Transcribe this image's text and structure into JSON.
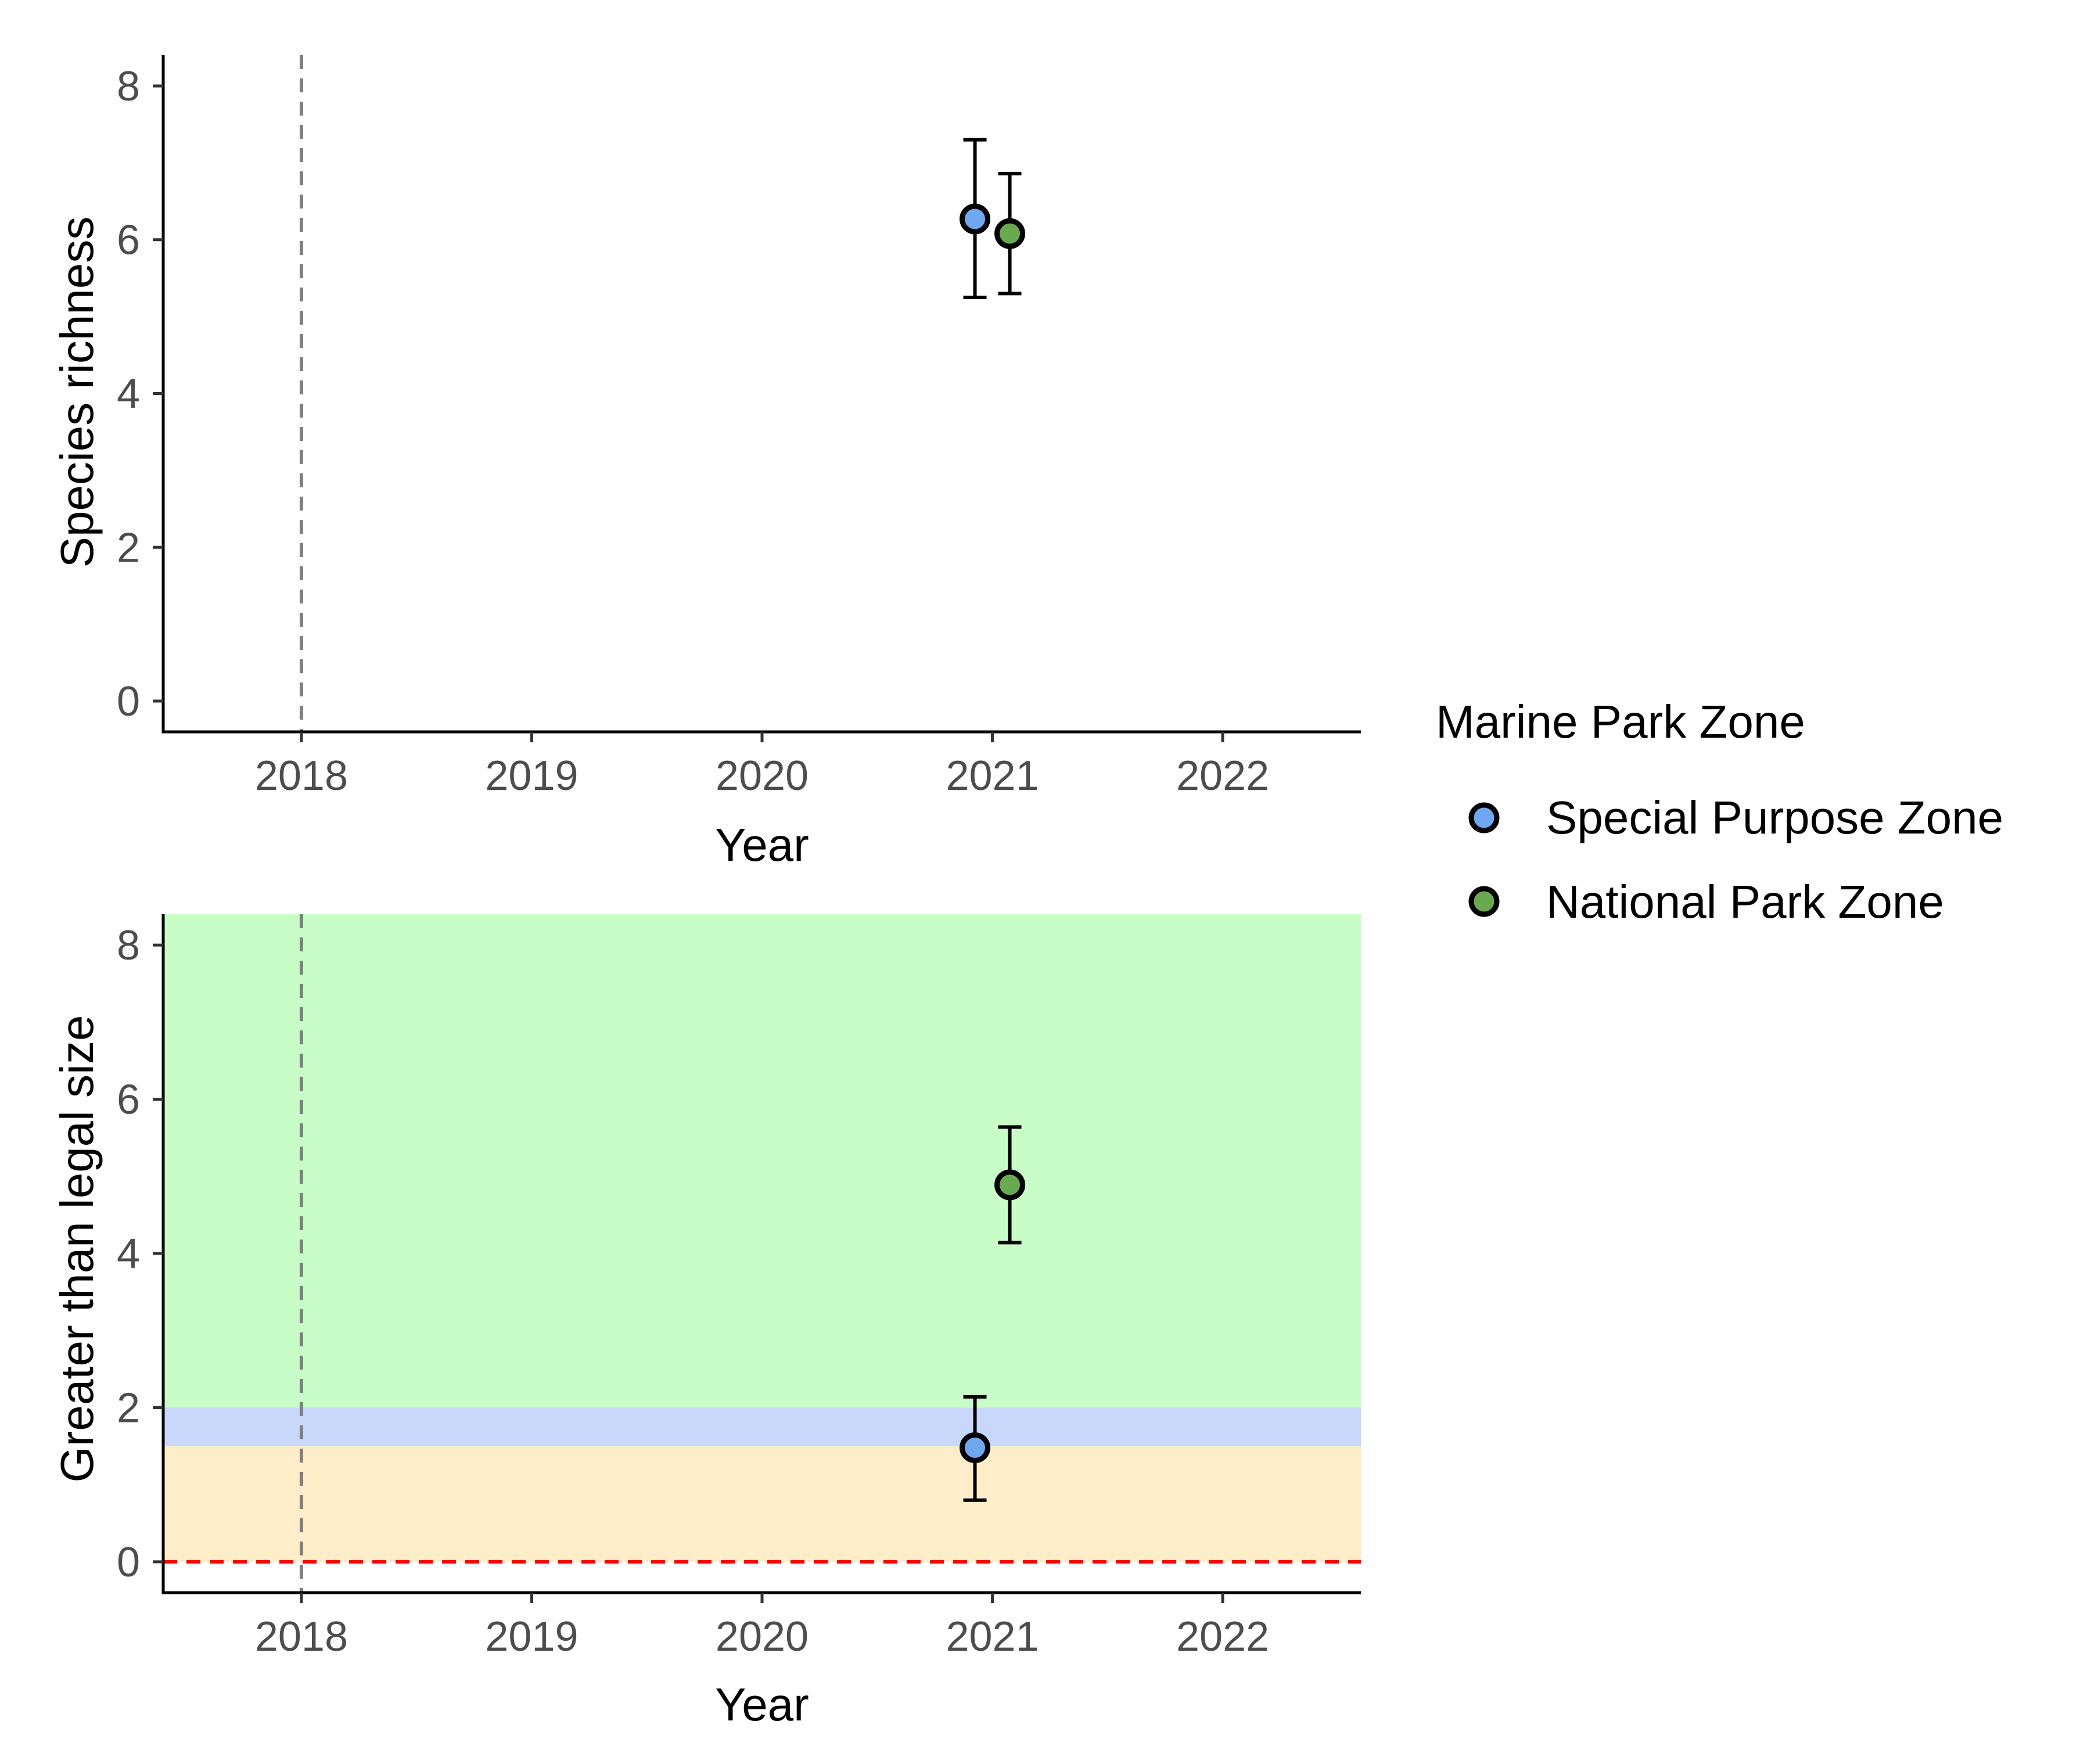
{
  "legend": {
    "title": "Marine Park Zone",
    "items": [
      {
        "label": "Special Purpose Zone",
        "color": "#6fa8f0"
      },
      {
        "label": "National Park Zone",
        "color": "#6aaa4f"
      }
    ]
  },
  "chart_data": [
    {
      "type": "scatter",
      "title": "",
      "xlabel": "Year",
      "ylabel": "Species richness",
      "xlim": [
        2017.4,
        2022.6
      ],
      "ylim": [
        -0.4,
        8.4
      ],
      "x_ticks": [
        "2018",
        "2019",
        "2020",
        "2021",
        "2022"
      ],
      "y_ticks": [
        "0",
        "2",
        "4",
        "6",
        "8"
      ],
      "reference_line_x": 2018,
      "grid": false,
      "series": [
        {
          "name": "Special Purpose Zone",
          "color": "#6fa8f0",
          "points": [
            {
              "x": 2021,
              "y": 6.27,
              "ymin": 5.25,
              "ymax": 7.3
            }
          ]
        },
        {
          "name": "National Park Zone",
          "color": "#6aaa4f",
          "points": [
            {
              "x": 2021,
              "y": 6.08,
              "ymin": 5.3,
              "ymax": 6.86
            }
          ]
        }
      ]
    },
    {
      "type": "scatter",
      "title": "",
      "xlabel": "Year",
      "ylabel": "Greater than legal size",
      "xlim": [
        2017.4,
        2022.6
      ],
      "ylim": [
        -0.4,
        8.4
      ],
      "x_ticks": [
        "2018",
        "2019",
        "2020",
        "2021",
        "2022"
      ],
      "y_ticks": [
        "0",
        "2",
        "4",
        "6",
        "8"
      ],
      "reference_line_x": 2018,
      "reference_line_y": {
        "value": 0,
        "color": "#ff0000"
      },
      "background_bands": [
        {
          "ymin": 0,
          "ymax": 1.5,
          "color": "#fdedc8"
        },
        {
          "ymin": 1.5,
          "ymax": 2,
          "color": "#c9d7fb"
        },
        {
          "ymin": 2,
          "ymax": 8.4,
          "color": "#c8fdc8"
        }
      ],
      "grid": false,
      "series": [
        {
          "name": "Special Purpose Zone",
          "color": "#6fa8f0",
          "points": [
            {
              "x": 2021,
              "y": 1.48,
              "ymin": 0.8,
              "ymax": 2.14
            }
          ]
        },
        {
          "name": "National Park Zone",
          "color": "#6aaa4f",
          "points": [
            {
              "x": 2021,
              "y": 4.89,
              "ymin": 4.14,
              "ymax": 5.64
            }
          ]
        }
      ]
    }
  ]
}
